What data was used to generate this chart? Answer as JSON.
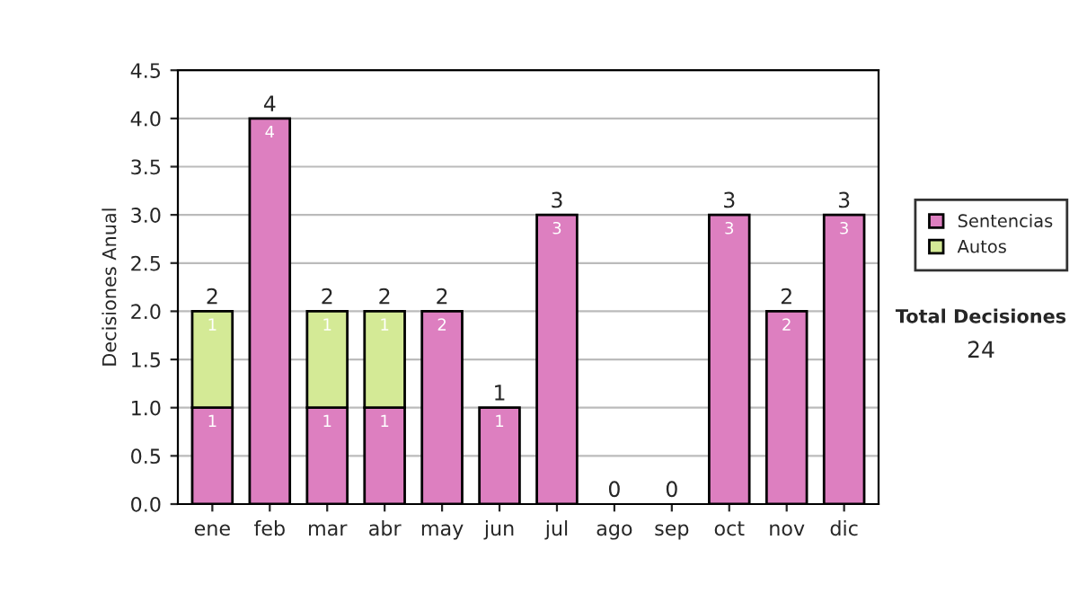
{
  "chart_data": {
    "type": "bar",
    "stacked": true,
    "ylabel": "Decisiones Anual",
    "categories": [
      "ene",
      "feb",
      "mar",
      "abr",
      "may",
      "jun",
      "jul",
      "ago",
      "sep",
      "oct",
      "nov",
      "dic"
    ],
    "series": [
      {
        "name": "Sentencias",
        "color": "#dd7fc0",
        "values": [
          1,
          4,
          1,
          1,
          2,
          1,
          3,
          0,
          0,
          3,
          2,
          3
        ],
        "value_labels": [
          "1",
          "4",
          "1",
          "1",
          "2",
          "1",
          "3",
          null,
          null,
          "3",
          "2",
          "3"
        ]
      },
      {
        "name": "Autos",
        "color": "#d4ea96",
        "values": [
          1,
          0,
          1,
          1,
          0,
          0,
          0,
          0,
          0,
          0,
          0,
          0
        ],
        "value_labels": [
          "1",
          null,
          "1",
          "1",
          null,
          null,
          null,
          null,
          null,
          null,
          null,
          null
        ]
      }
    ],
    "totals": [
      "2",
      "4",
      "2",
      "2",
      "2",
      "1",
      "3",
      "0",
      "0",
      "3",
      "2",
      "3"
    ],
    "ylim": [
      0,
      4.5
    ],
    "yticks": [
      {
        "value": 0,
        "label": "0.0"
      },
      {
        "value": 0.5,
        "label": "0.5"
      },
      {
        "value": 1,
        "label": "1.0"
      },
      {
        "value": 1.5,
        "label": "1.5"
      },
      {
        "value": 2,
        "label": "2.0"
      },
      {
        "value": 2.5,
        "label": "2.5"
      },
      {
        "value": 3,
        "label": "3.0"
      },
      {
        "value": 3.5,
        "label": "3.5"
      },
      {
        "value": 4,
        "label": "4.0"
      },
      {
        "value": 4.5,
        "label": "4.5"
      }
    ],
    "grid": "y",
    "legend": "right",
    "annotations": [
      "Total Decisiones",
      "24"
    ]
  }
}
